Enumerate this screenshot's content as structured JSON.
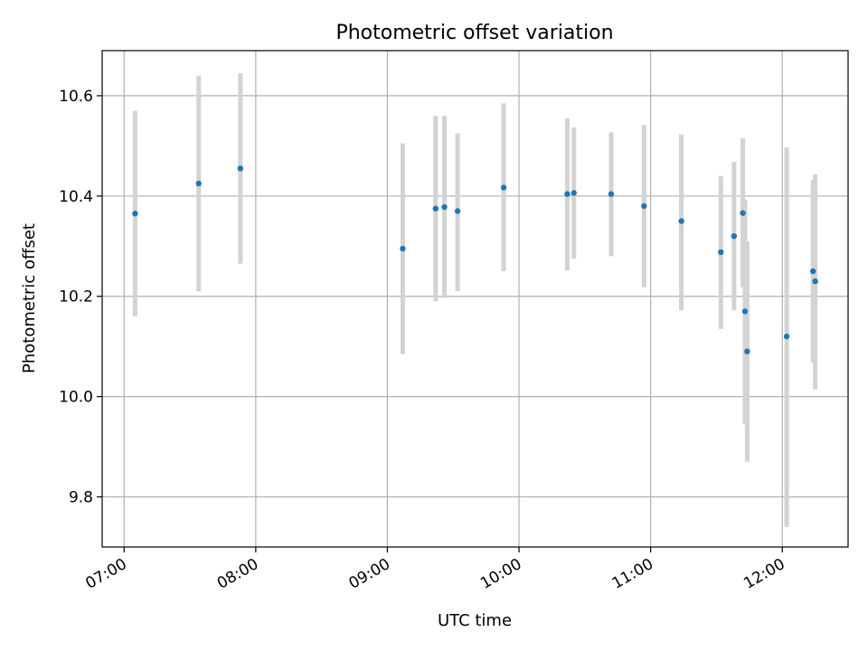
{
  "chart_data": {
    "type": "scatter",
    "title": "Photometric offset variation",
    "xlabel": "UTC time",
    "ylabel": "Photometric offset",
    "x_unit": "hours UTC",
    "xlim": [
      "06:50",
      "12:30"
    ],
    "ylim": [
      9.7,
      10.69
    ],
    "x_ticks": [
      "07:00",
      "08:00",
      "09:00",
      "10:00",
      "11:00",
      "12:00"
    ],
    "y_ticks": [
      9.8,
      10.0,
      10.2,
      10.4,
      10.6
    ],
    "y_tick_labels": [
      "9.8",
      "10.0",
      "10.2",
      "10.4",
      "10.6"
    ],
    "grid": true,
    "legend": "none",
    "point_color": "#1f77b4",
    "errorbar_color": "#d3d3d3",
    "points": [
      {
        "t": "07:05",
        "y": 10.365,
        "lo": 10.16,
        "hi": 10.57
      },
      {
        "t": "07:34",
        "y": 10.425,
        "lo": 10.21,
        "hi": 10.64
      },
      {
        "t": "07:53",
        "y": 10.455,
        "lo": 10.265,
        "hi": 10.645
      },
      {
        "t": "09:07",
        "y": 10.295,
        "lo": 10.085,
        "hi": 10.505
      },
      {
        "t": "09:22",
        "y": 10.375,
        "lo": 10.19,
        "hi": 10.56
      },
      {
        "t": "09:26",
        "y": 10.378,
        "lo": 10.197,
        "hi": 10.56
      },
      {
        "t": "09:32",
        "y": 10.37,
        "lo": 10.21,
        "hi": 10.525
      },
      {
        "t": "09:53",
        "y": 10.417,
        "lo": 10.25,
        "hi": 10.585
      },
      {
        "t": "10:22",
        "y": 10.404,
        "lo": 10.252,
        "hi": 10.555
      },
      {
        "t": "10:25",
        "y": 10.406,
        "lo": 10.275,
        "hi": 10.537
      },
      {
        "t": "10:42",
        "y": 10.404,
        "lo": 10.28,
        "hi": 10.527
      },
      {
        "t": "10:57",
        "y": 10.38,
        "lo": 10.218,
        "hi": 10.542
      },
      {
        "t": "11:14",
        "y": 10.35,
        "lo": 10.172,
        "hi": 10.523
      },
      {
        "t": "11:32",
        "y": 10.288,
        "lo": 10.135,
        "hi": 10.44
      },
      {
        "t": "11:38",
        "y": 10.32,
        "lo": 10.172,
        "hi": 10.468
      },
      {
        "t": "11:42",
        "y": 10.366,
        "lo": 10.218,
        "hi": 10.515
      },
      {
        "t": "11:43",
        "y": 10.17,
        "lo": 9.945,
        "hi": 10.393
      },
      {
        "t": "11:44",
        "y": 10.09,
        "lo": 9.87,
        "hi": 10.31
      },
      {
        "t": "12:02",
        "y": 10.12,
        "lo": 9.74,
        "hi": 10.497
      },
      {
        "t": "12:14",
        "y": 10.25,
        "lo": 10.068,
        "hi": 10.432
      },
      {
        "t": "12:15",
        "y": 10.23,
        "lo": 10.015,
        "hi": 10.443
      }
    ]
  }
}
